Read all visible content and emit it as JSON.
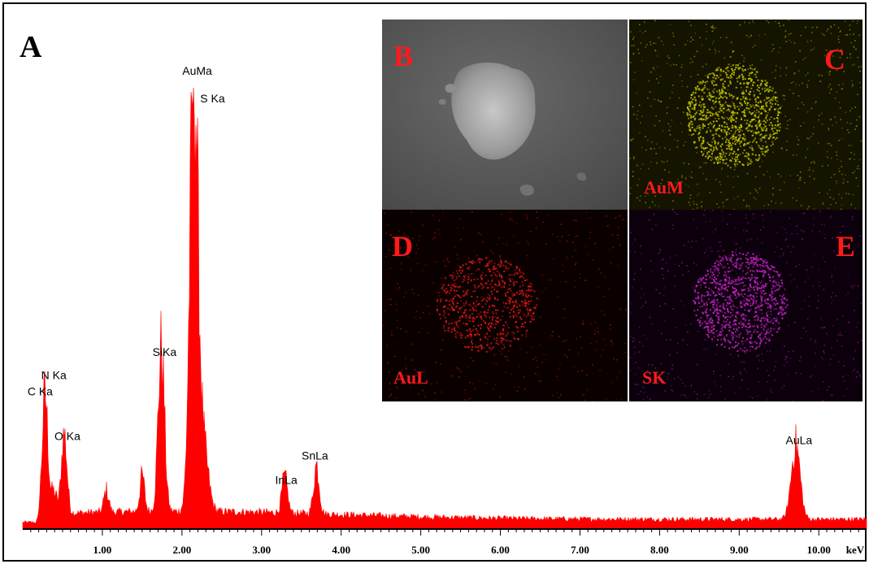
{
  "panels": {
    "A": "A",
    "B": "B",
    "C": "C",
    "D": "D",
    "E": "E",
    "C_map": "AuM",
    "D_map": "AuL",
    "E_map": "SK"
  },
  "colors": {
    "spectrum": "#ff0000",
    "map_AuM": "#c8c800",
    "map_AuL": "#e01818",
    "map_SK": "#c020c0",
    "label": "#ff1a1a"
  },
  "chart_data": {
    "type": "area",
    "xlabel": "keV",
    "ylabel": "",
    "xlim": [
      0.0,
      10.6
    ],
    "ylim": [
      0,
      100
    ],
    "x_ticks": [
      {
        "value": 1.0,
        "label": "1.00"
      },
      {
        "value": 2.0,
        "label": "2.00"
      },
      {
        "value": 3.0,
        "label": "3.00"
      },
      {
        "value": 4.0,
        "label": "4.00"
      },
      {
        "value": 5.0,
        "label": "5.00"
      },
      {
        "value": 6.0,
        "label": "6.00"
      },
      {
        "value": 7.0,
        "label": "7.00"
      },
      {
        "value": 8.0,
        "label": "8.00"
      },
      {
        "value": 9.0,
        "label": "9.00"
      },
      {
        "value": 10.0,
        "label": "10.00"
      }
    ],
    "peaks": [
      {
        "label": "C Ka",
        "energy": 0.28,
        "counts": 27
      },
      {
        "label": "N Ka",
        "energy": 0.39,
        "counts": 5
      },
      {
        "label": "O Ka",
        "energy": 0.52,
        "counts": 18
      },
      {
        "label": "SiKa",
        "energy": 1.74,
        "counts": 37
      },
      {
        "label": "AuMa",
        "energy": 2.15,
        "counts": 100
      },
      {
        "label": "S Ka",
        "energy": 2.18,
        "counts": 92
      },
      {
        "label": "InLa",
        "energy": 3.29,
        "counts": 8
      },
      {
        "label": "SnLa",
        "energy": 3.69,
        "counts": 11
      },
      {
        "label": "AuLa",
        "energy": 9.71,
        "counts": 17
      }
    ]
  }
}
